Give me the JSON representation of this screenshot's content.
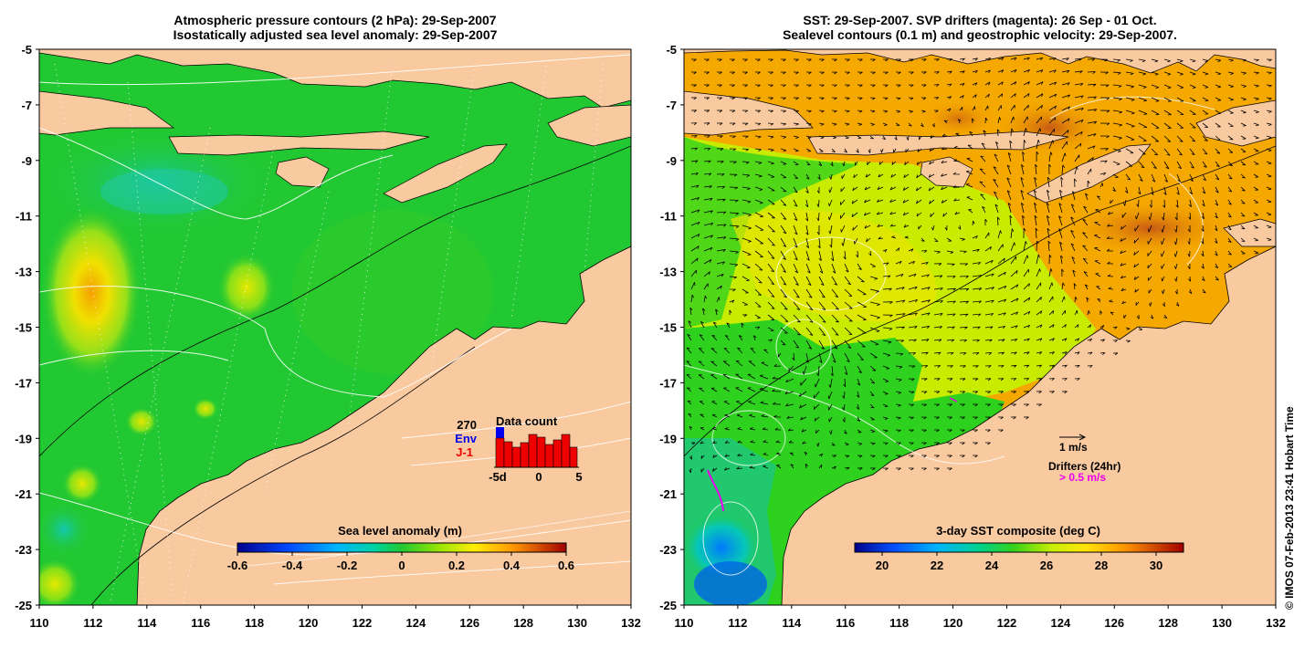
{
  "left_panel": {
    "title_line1": "Atmospheric pressure contours (2 hPa): 29-Sep-2007",
    "title_line2": "Isostatically adjusted sea level anomaly: 29-Sep-2007",
    "colorbar": {
      "label": "Sea level anomaly (m)",
      "ticks": [
        "-0.6",
        "-0.4",
        "-0.2",
        "0",
        "0.2",
        "0.4",
        "0.6"
      ],
      "range": [
        -0.6,
        0.6
      ]
    },
    "data_count": {
      "title": "Data count",
      "total": "270",
      "legend_env": "Env",
      "legend_ji": "J-1",
      "axis_labels": [
        "-5d",
        "0",
        "5"
      ],
      "env_color": "#0000ee",
      "ji_color": "#ee0000"
    }
  },
  "right_panel": {
    "title_line1": "SST: 29-Sep-2007. SVP drifters (magenta): 26 Sep - 01 Oct.",
    "title_line2": "Sealevel contours (0.1 m) and geostrophic velocity: 29-Sep-2007.",
    "colorbar": {
      "label": "3-day SST composite (deg C)",
      "ticks": [
        "20",
        "22",
        "24",
        "26",
        "28",
        "30"
      ],
      "range": [
        19,
        31
      ]
    },
    "velocity_key": "1 m/s",
    "drifter_key_title": "Drifters (24hr)",
    "drifter_key_value": "> 0.5 m/s",
    "drifter_color": "#ee00ee"
  },
  "axes": {
    "lon_ticks": [
      "110",
      "112",
      "114",
      "116",
      "118",
      "120",
      "122",
      "124",
      "126",
      "128",
      "130",
      "132"
    ],
    "lat_ticks": [
      "-5",
      "-7",
      "-9",
      "-11",
      "-13",
      "-15",
      "-17",
      "-19",
      "-21",
      "-23",
      "-25"
    ]
  },
  "credit": "© IMOS 07-Feb-2013 23:41 Hobart Time",
  "colors": {
    "land": "#f9c9a0",
    "sla_bg": "#22c832",
    "sst_bg": "#f7a800"
  }
}
